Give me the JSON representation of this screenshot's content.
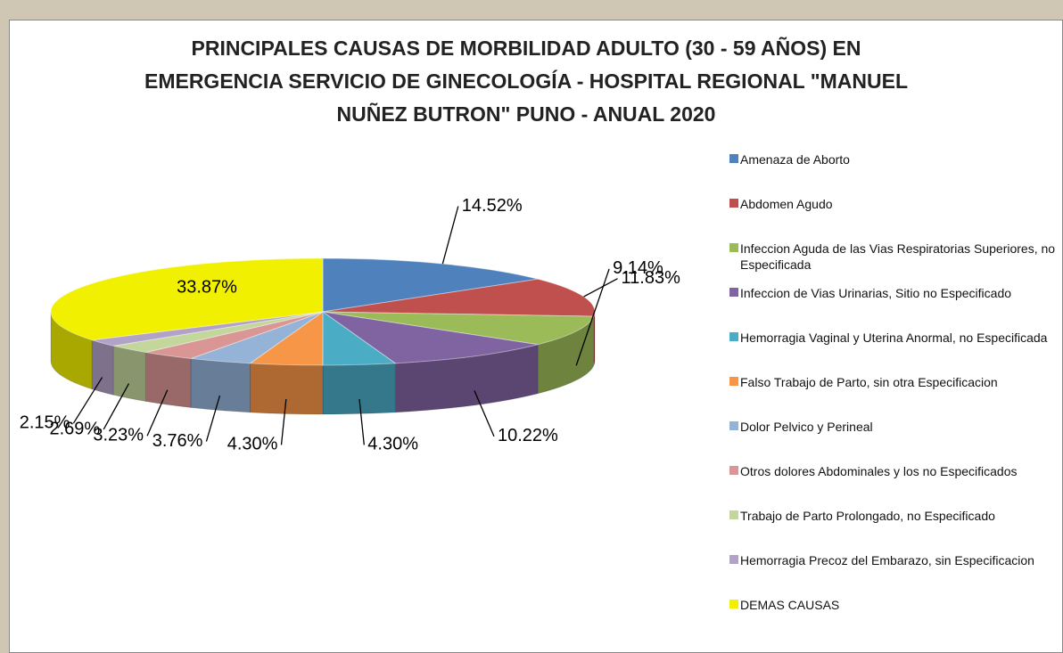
{
  "chart_data": {
    "type": "pie3d",
    "title": "PRINCIPALES CAUSAS DE MORBILIDAD ADULTO (30 - 59 AÑOS) EN EMERGENCIA SERVICIO DE GINECOLOGÍA - HOSPITAL REGIONAL \"MANUEL NUÑEZ BUTRON\" PUNO - ANUAL 2020",
    "categories": [
      "Amenaza de Aborto",
      "Abdomen Agudo",
      "Infeccion Aguda de las Vias Respiratorias Superiores, no Especificada",
      "Infeccion de Vias Urinarias, Sitio no Especificado",
      "Hemorragia Vaginal y Uterina Anormal, no Especificada",
      "Falso Trabajo de Parto, sin otra Especificacion",
      "Dolor Pelvico y Perineal",
      "Otros dolores Abdominales y los no Especificados",
      "Trabajo de Parto Prolongado, no Especificado",
      "Hemorragia Precoz del Embarazo, sin Especificacion",
      "DEMAS CAUSAS"
    ],
    "values": [
      14.52,
      11.83,
      9.14,
      10.22,
      4.3,
      4.3,
      3.76,
      3.23,
      2.69,
      2.15,
      33.87
    ],
    "value_labels": [
      "14.52%",
      "11.83%",
      "9.14%",
      "10.22%",
      "4.30%",
      "4.30%",
      "3.76%",
      "3.23%",
      "2.69%",
      "2.15%",
      "33.87%"
    ],
    "colors": [
      "#4f81bd",
      "#c0504d",
      "#9bbb59",
      "#8064a2",
      "#4bacc6",
      "#f79646",
      "#95b3d7",
      "#d99694",
      "#c3d69b",
      "#b3a2c7",
      "#f0f000"
    ],
    "legend": "right"
  }
}
